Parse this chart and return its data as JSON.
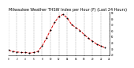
{
  "title": "Milwaukee Weather THSW Index per Hour (F) (Last 24 Hours)",
  "title_fontsize": 3.5,
  "background_color": "#ffffff",
  "plot_bg_color": "#ffffff",
  "line_color": "#dd0000",
  "marker_color": "#000000",
  "grid_color": "#999999",
  "xlim": [
    0,
    24
  ],
  "ylim": [
    18,
    92
  ],
  "yticks": [
    20,
    30,
    40,
    50,
    60,
    70,
    80,
    90
  ],
  "ytick_labels": [
    "20",
    "30",
    "40",
    "50",
    "60",
    "70",
    "80",
    "90"
  ],
  "xticks": [
    0,
    2,
    4,
    6,
    8,
    10,
    12,
    14,
    16,
    18,
    20,
    22,
    24
  ],
  "xtick_labels": [
    "0",
    "2",
    "4",
    "6",
    "8",
    "10",
    "12",
    "14",
    "16",
    "18",
    "20",
    "22",
    "24"
  ],
  "hours": [
    0,
    1,
    2,
    3,
    4,
    5,
    6,
    7,
    8,
    9,
    10,
    11,
    12,
    13,
    14,
    15,
    16,
    17,
    18,
    19,
    20,
    21,
    22,
    23
  ],
  "values": [
    27,
    25,
    24,
    23,
    23,
    22,
    23,
    25,
    34,
    47,
    61,
    74,
    84,
    87,
    81,
    70,
    65,
    60,
    53,
    47,
    42,
    37,
    34,
    31
  ]
}
